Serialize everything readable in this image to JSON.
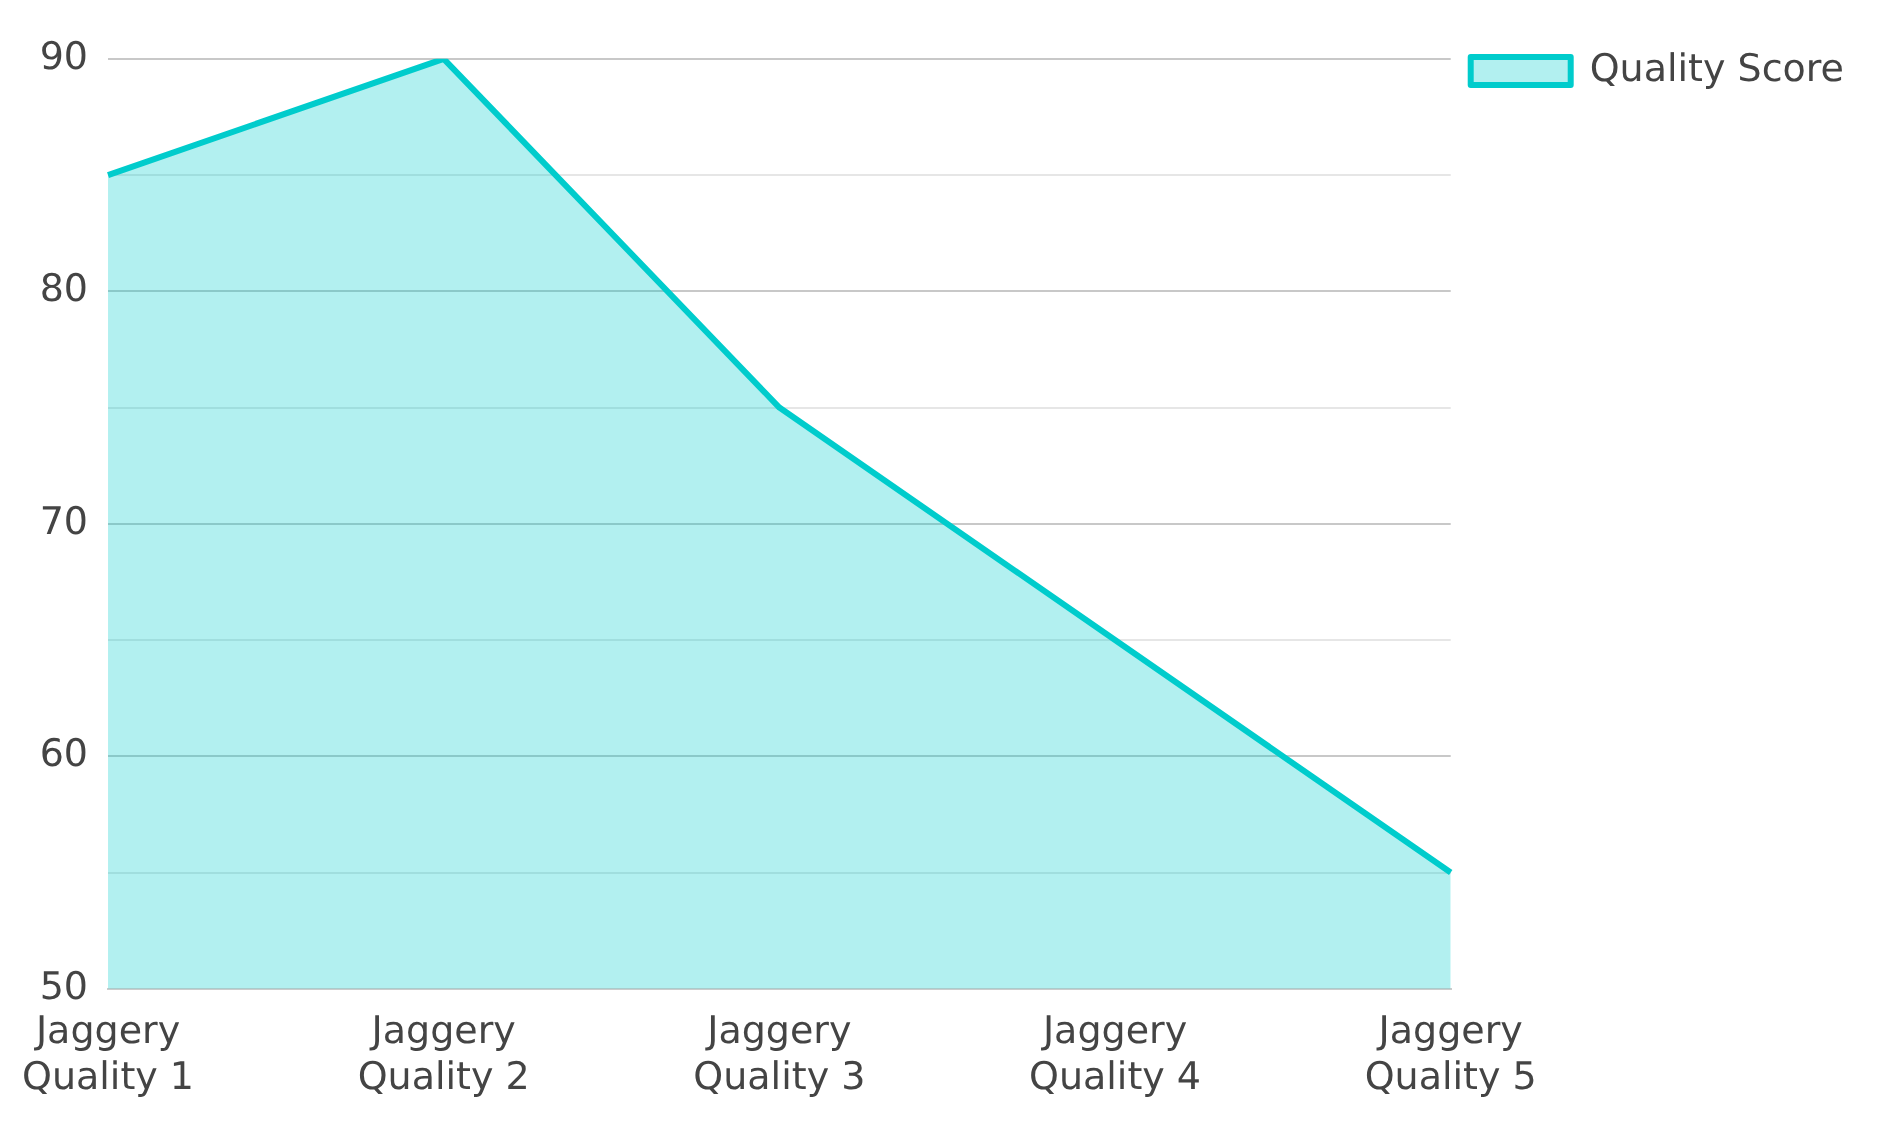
{
  "chart_data": {
    "type": "area",
    "categories": [
      "Jaggery Quality 1",
      "Jaggery Quality 2",
      "Jaggery Quality 3",
      "Jaggery Quality 4",
      "Jaggery Quality 5"
    ],
    "series": [
      {
        "name": "Quality Score",
        "color": "#00cccc",
        "values": [
          85,
          90,
          75,
          65,
          55
        ]
      }
    ],
    "ylim": [
      50,
      90
    ],
    "yticks": [
      50,
      {
        "value": 55,
        "label": null
      },
      60,
      {
        "value": 65,
        "label": null
      },
      70,
      {
        "value": 75,
        "label": null
      },
      80,
      {
        "value": 85,
        "label": null
      },
      90
    ],
    "grid": "y",
    "legend": "top right",
    "marker": "none",
    "line_style": "solid"
  }
}
